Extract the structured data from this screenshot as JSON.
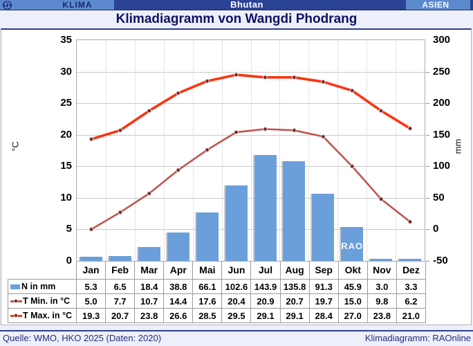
{
  "topbar": {
    "left_label": "KLIMA",
    "center_label": "Bhutan",
    "right_label": "ASIEN"
  },
  "title": "Klimadiagramm von Wangdi Phodrang",
  "watermark": "RAO",
  "footer": {
    "source": "Quelle: WMO, HKO 2025 (Daten: 2020)",
    "credit": "Klimadiagramm: RAOnline"
  },
  "colors": {
    "header_blue": "#5d8ace",
    "header_navy": "#2b4394",
    "bar_blue": "#6b9fdb",
    "tmin_red": "#c0544f",
    "tmax_red": "#fe330f",
    "marker_dark_red": "#7a1d15",
    "grid_gray": "#c9c9c9",
    "title_navy": "#0d1265"
  },
  "chart_data": {
    "type": "bar+line",
    "title": "Klimadiagramm von Wangdi Phodrang",
    "categories": [
      "Jan",
      "Feb",
      "Mar",
      "Apr",
      "Mai",
      "Jun",
      "Jul",
      "Aug",
      "Sep",
      "Okt",
      "Nov",
      "Dez"
    ],
    "series": [
      {
        "name": "N in mm",
        "type": "bar",
        "axis": "right",
        "color": "#6b9fdb",
        "values": [
          5.3,
          6.5,
          18.4,
          38.8,
          66.1,
          102.6,
          143.9,
          135.8,
          91.3,
          45.9,
          3.0,
          3.3
        ]
      },
      {
        "name": "T Min. in °C",
        "type": "line",
        "axis": "left",
        "color": "#c0544f",
        "values": [
          5.0,
          7.7,
          10.7,
          14.4,
          17.6,
          20.4,
          20.9,
          20.7,
          19.7,
          15.0,
          9.8,
          6.2
        ]
      },
      {
        "name": "T Max. in °C",
        "type": "line",
        "axis": "left",
        "color": "#fe330f",
        "values": [
          19.3,
          20.7,
          23.8,
          26.6,
          28.5,
          29.5,
          29.1,
          29.1,
          28.4,
          27.0,
          23.8,
          21.0
        ]
      }
    ],
    "axes": {
      "left": {
        "label": "°C",
        "min": 0,
        "max": 35,
        "step": 5,
        "ticks": [
          35,
          30,
          25,
          20,
          15,
          10,
          5,
          0
        ]
      },
      "right": {
        "label": "mm",
        "min": 0,
        "max": 300,
        "step": 50,
        "ticks": [
          300,
          250,
          200,
          150,
          100,
          50,
          0
        ]
      }
    },
    "grid": true,
    "legend_position": "table-left"
  }
}
